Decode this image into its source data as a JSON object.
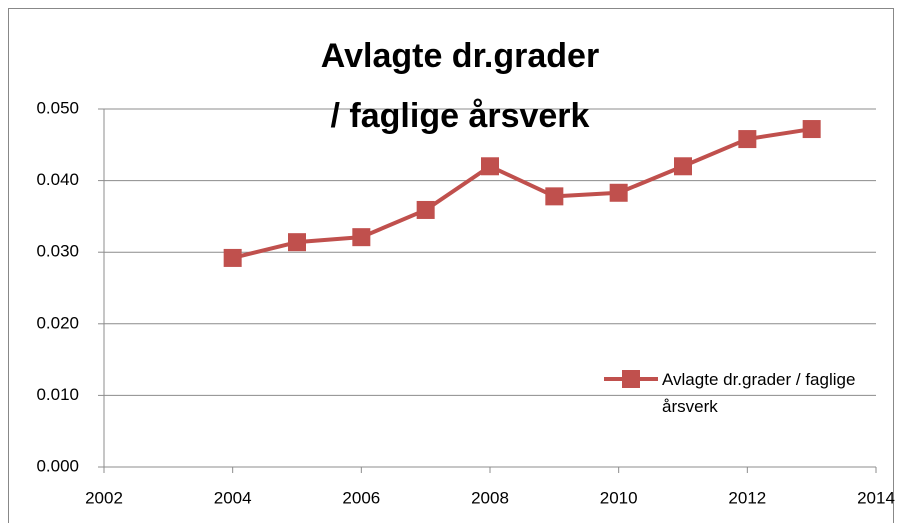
{
  "chart_data": {
    "type": "line",
    "title": [
      "Avlagte dr.grader",
      "/ faglige årsverk"
    ],
    "x": [
      2004,
      2005,
      2006,
      2007,
      2008,
      2009,
      2010,
      2011,
      2012,
      2013
    ],
    "series": [
      {
        "name": "Avlagte dr.grader / faglige årsverk",
        "color": "#c0504d",
        "values": [
          0.0292,
          0.0314,
          0.0321,
          0.0359,
          0.042,
          0.0378,
          0.0383,
          0.042,
          0.0458,
          0.0472
        ]
      }
    ],
    "xlim": [
      2002,
      2014
    ],
    "xticks": [
      2002,
      2004,
      2006,
      2008,
      2010,
      2012,
      2014
    ],
    "ylim": [
      0,
      0.05
    ],
    "yticks": [
      {
        "value": 0,
        "label": "0.000"
      },
      {
        "value": 0.01,
        "label": "0.010"
      },
      {
        "value": 0.02,
        "label": "0.020"
      },
      {
        "value": 0.03,
        "label": "0.030"
      },
      {
        "value": 0.04,
        "label": "0.040"
      },
      {
        "value": 0.05,
        "label": "0.050"
      }
    ],
    "grid": true,
    "legend": "lower-right"
  }
}
